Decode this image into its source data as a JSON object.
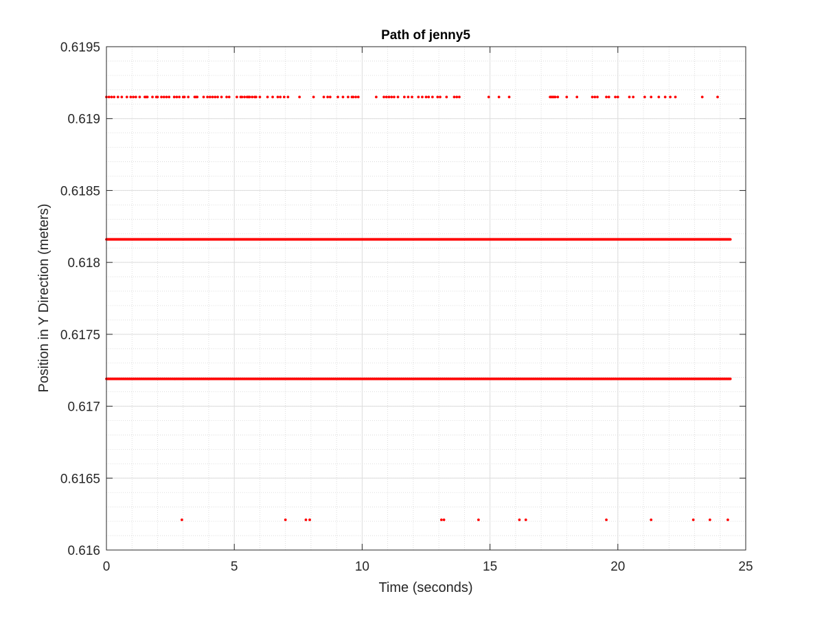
{
  "chart_data": {
    "type": "scatter",
    "title": "Path of jenny5",
    "xlabel": "Time (seconds)",
    "ylabel": "Position in Y Direction (meters)",
    "xlim": [
      0,
      25
    ],
    "ylim": [
      0.616,
      0.6195
    ],
    "x_ticks": [
      0,
      5,
      10,
      15,
      20,
      25
    ],
    "x_tick_labels": [
      "0",
      "5",
      "10",
      "15",
      "20",
      "25"
    ],
    "y_ticks": [
      0.616,
      0.6165,
      0.617,
      0.6175,
      0.618,
      0.6185,
      0.619,
      0.6195
    ],
    "y_tick_labels": [
      "0.616",
      "0.6165",
      "0.617",
      "0.6175",
      "0.618",
      "0.6185",
      "0.619",
      "0.6195"
    ],
    "grid": true,
    "minor_grid": true,
    "marker_color": "#ff0000",
    "series": [
      {
        "y": 0.61915,
        "x": [
          0.0,
          0.1,
          0.2,
          0.3,
          0.45,
          0.6,
          0.8,
          0.95,
          1.05,
          1.15,
          1.3,
          1.5,
          1.55,
          1.6,
          1.8,
          1.95,
          2.0,
          2.15,
          2.25,
          2.35,
          2.45,
          2.65,
          2.75,
          2.85,
          3.0,
          3.05,
          3.2,
          3.45,
          3.5,
          3.55,
          3.8,
          3.95,
          4.05,
          4.15,
          4.25,
          4.35,
          4.5,
          4.7,
          4.8,
          5.1,
          5.25,
          5.3,
          5.4,
          5.5,
          5.55,
          5.6,
          5.7,
          5.8,
          5.85,
          6.0,
          6.3,
          6.5,
          6.7,
          6.8,
          6.95,
          7.1,
          7.55,
          8.1,
          8.5,
          8.65,
          8.75,
          9.05,
          9.25,
          9.45,
          9.6,
          9.65,
          9.75,
          9.85,
          10.55,
          10.85,
          10.95,
          11.05,
          11.15,
          11.25,
          11.4,
          11.65,
          11.8,
          11.95,
          12.2,
          12.35,
          12.5,
          12.6,
          12.75,
          12.95,
          13.05,
          13.3,
          13.6,
          13.7,
          13.8,
          14.95,
          15.35,
          15.75,
          17.35,
          17.4,
          17.45,
          17.5,
          17.55,
          17.65,
          18.0,
          18.4,
          19.0,
          19.1,
          19.2,
          19.55,
          19.65,
          19.9,
          20.0,
          20.45,
          20.6,
          21.05,
          21.3,
          21.6,
          21.85,
          22.05,
          22.25,
          23.3,
          23.9
        ]
      },
      {
        "y": 0.61816,
        "x_start": 0.0,
        "x_end": 24.4,
        "dense": true
      },
      {
        "y": 0.61719,
        "x_start": 0.0,
        "x_end": 24.4,
        "dense": true
      },
      {
        "y": 0.61621,
        "x": [
          2.95,
          7.0,
          7.8,
          7.95,
          13.1,
          13.2,
          14.55,
          16.15,
          16.4,
          19.55,
          21.3,
          22.95,
          23.6,
          24.3
        ]
      }
    ]
  }
}
